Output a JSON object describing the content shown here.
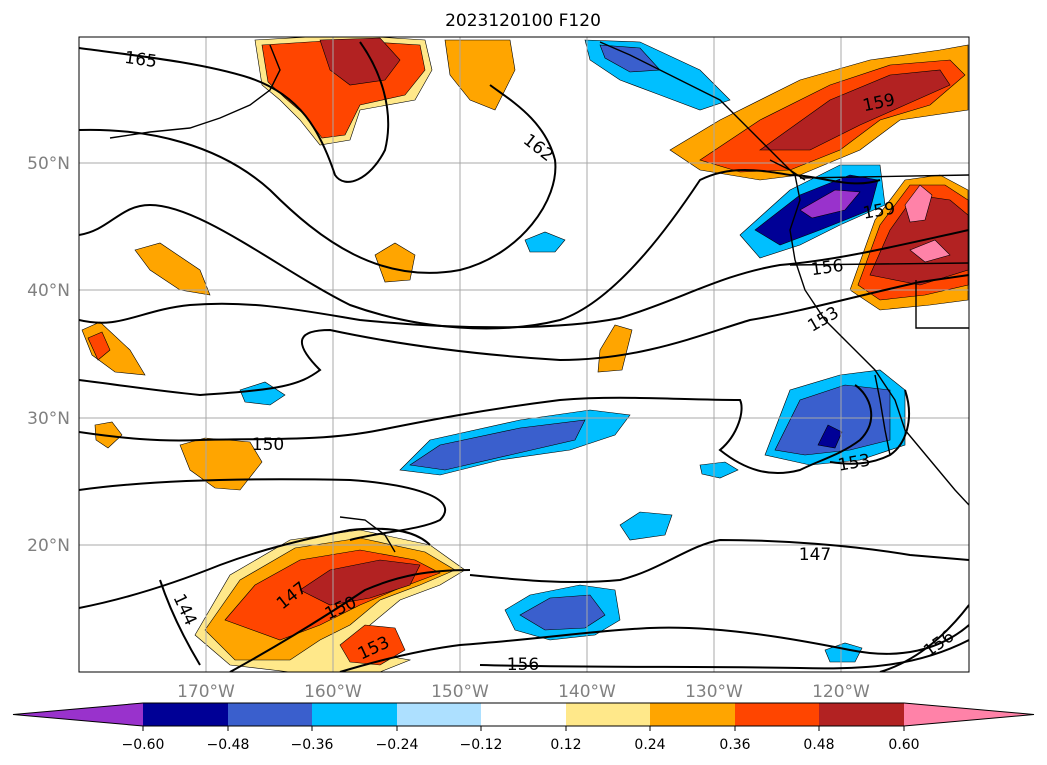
{
  "title": "2023120100 F120",
  "map": {
    "projection": "PlateCarree",
    "lon_range": [
      180,
      -109
    ],
    "lat_range": [
      10,
      60
    ],
    "grid": true,
    "lat_ticks": [
      "20°N",
      "30°N",
      "40°N",
      "50°N"
    ],
    "lon_ticks": [
      "170°W",
      "160°W",
      "150°W",
      "140°W",
      "130°W",
      "120°W"
    ],
    "contour_labels": [
      "165",
      "162",
      "159",
      "159",
      "156",
      "153",
      "150",
      "150",
      "147",
      "147",
      "144",
      "153",
      "153",
      "156",
      "156"
    ]
  },
  "colorbar": {
    "orientation": "horizontal",
    "extend": "both",
    "ticks": [
      "−0.60",
      "−0.48",
      "−0.36",
      "−0.24",
      "−0.12",
      "0.12",
      "0.24",
      "0.36",
      "0.48",
      "0.60"
    ],
    "colors": {
      "under": "#9932CC",
      "bins": [
        "#000096",
        "#3A5FCD",
        "#00BFFF",
        "#ADE0FF",
        "#FFFFFF",
        "#FFE88A",
        "#FFA500",
        "#FF4500",
        "#B22222",
        "#FF82A8"
      ]
    }
  }
}
